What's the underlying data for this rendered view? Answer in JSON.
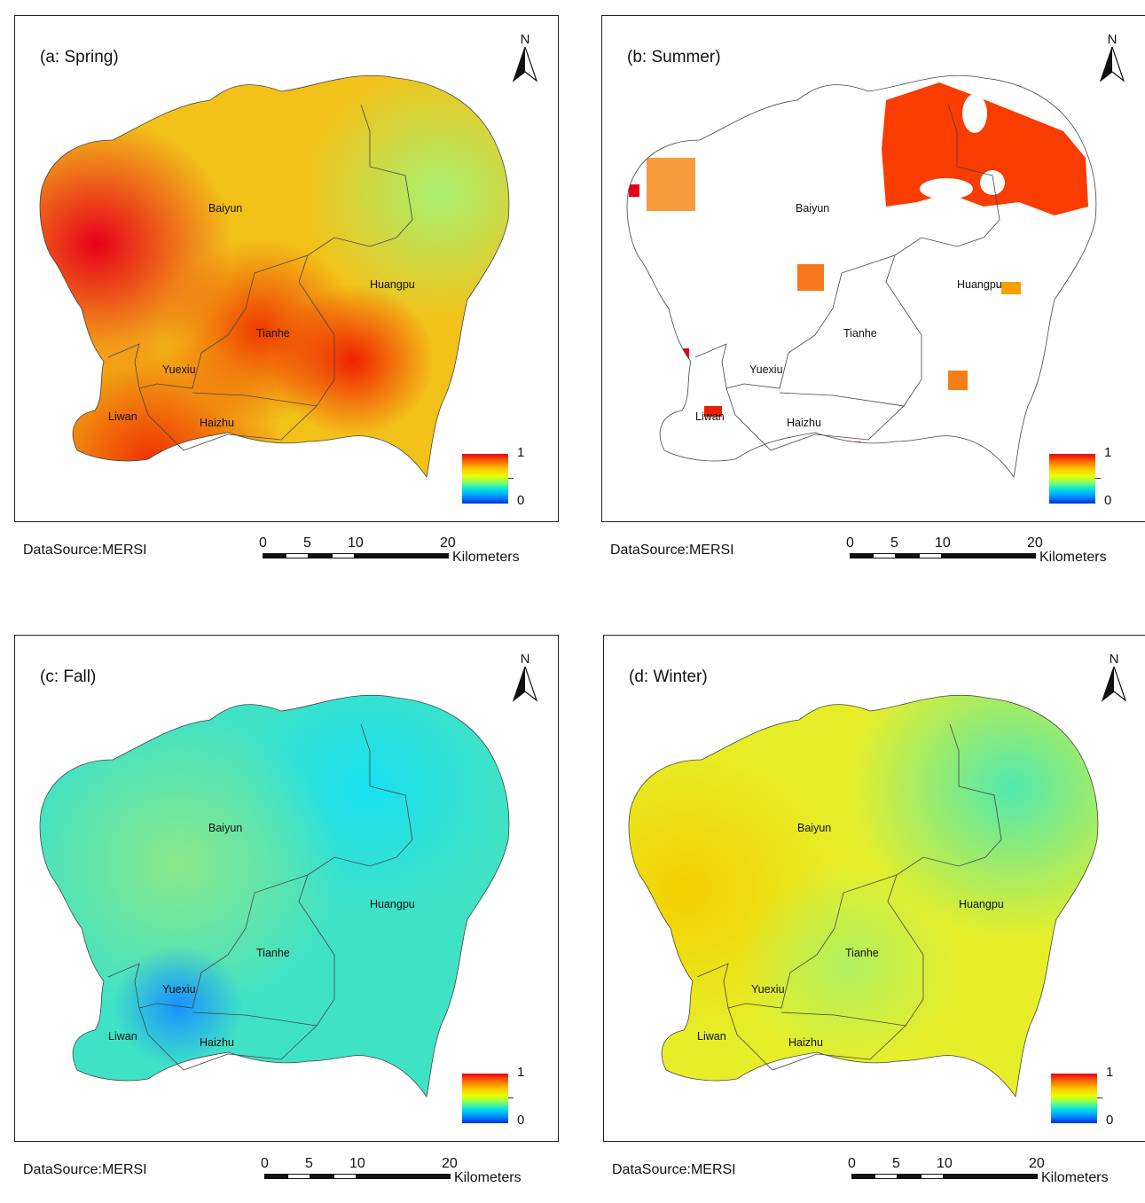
{
  "panels": [
    {
      "id": "spring",
      "title": "(a: Spring)"
    },
    {
      "id": "summer",
      "title": "(b: Summer)"
    },
    {
      "id": "fall",
      "title": "(c: Fall)"
    },
    {
      "id": "winter",
      "title": "(d: Winter)"
    }
  ],
  "districts": {
    "baiyun": "Baiyun",
    "huangpu": "Huangpu",
    "tianhe": "Tianhe",
    "yuexiu": "Yuexiu",
    "liwan": "Liwan",
    "haizhu": "Haizhu"
  },
  "north_label": "N",
  "legend": {
    "max": "1",
    "min": "0"
  },
  "source": "DataSource:MERSI",
  "scale": {
    "t0": "0",
    "t5": "5",
    "t10": "10",
    "t20": "20",
    "unit": "Kilometers"
  },
  "colors": {
    "spring_base": "#f4c218",
    "spring_hot": "#e8001a",
    "summer_fill": "#ff3a00",
    "fall_base": "#3fe8c0",
    "winter_base": "#e6f03a"
  }
}
